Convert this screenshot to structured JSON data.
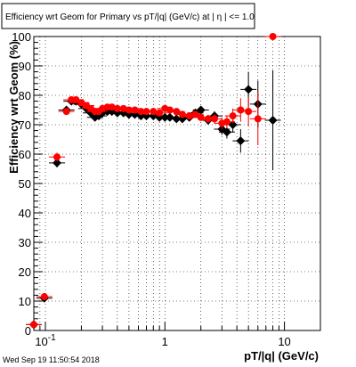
{
  "chart_data": {
    "type": "scatter",
    "title": "Efficiency wrt Geom for Primary vs pT/|q| (GeV/c) at |  η | <= 1.0",
    "xlabel": "pT/|q| (GeV/c)",
    "ylabel": "Efficiency wrt Geom (%)",
    "xscale": "log",
    "xlim": [
      0.08,
      20
    ],
    "ylim": [
      0,
      100
    ],
    "x_tick_labels": [
      {
        "value": 0.1,
        "base": "10",
        "exp": "-1"
      },
      {
        "value": 1,
        "base": "1",
        "exp": ""
      },
      {
        "value": 10,
        "base": "10",
        "exp": ""
      }
    ],
    "y_ticks": [
      0,
      10,
      20,
      30,
      40,
      50,
      60,
      70,
      80,
      90,
      100
    ],
    "grid": true,
    "series": [
      {
        "color": "#000000",
        "marker": "diamond",
        "points": [
          {
            "x": 0.08,
            "y": 2,
            "err": 1
          },
          {
            "x": 0.098,
            "y": 11,
            "err": 1
          },
          {
            "x": 0.125,
            "y": 57,
            "err": 1.5
          },
          {
            "x": 0.15,
            "y": 75,
            "err": 1
          },
          {
            "x": 0.165,
            "y": 78,
            "err": 0.5
          },
          {
            "x": 0.18,
            "y": 78,
            "err": 0.5
          },
          {
            "x": 0.2,
            "y": 77,
            "err": 0.5
          },
          {
            "x": 0.22,
            "y": 75.5,
            "err": 0.5
          },
          {
            "x": 0.24,
            "y": 74,
            "err": 0.5
          },
          {
            "x": 0.26,
            "y": 72.5,
            "err": 0.5
          },
          {
            "x": 0.28,
            "y": 73,
            "err": 0.5
          },
          {
            "x": 0.3,
            "y": 74,
            "err": 0.5
          },
          {
            "x": 0.33,
            "y": 74.5,
            "err": 0.5
          },
          {
            "x": 0.36,
            "y": 74.5,
            "err": 0.5
          },
          {
            "x": 0.4,
            "y": 74,
            "err": 0.5
          },
          {
            "x": 0.45,
            "y": 74,
            "err": 0.5
          },
          {
            "x": 0.5,
            "y": 73.5,
            "err": 0.5
          },
          {
            "x": 0.56,
            "y": 73.5,
            "err": 0.5
          },
          {
            "x": 0.63,
            "y": 73,
            "err": 0.5
          },
          {
            "x": 0.7,
            "y": 73,
            "err": 0.6
          },
          {
            "x": 0.8,
            "y": 73,
            "err": 0.6
          },
          {
            "x": 0.9,
            "y": 72.5,
            "err": 0.6
          },
          {
            "x": 1.0,
            "y": 72.5,
            "err": 0.7
          },
          {
            "x": 1.1,
            "y": 72.5,
            "err": 0.7
          },
          {
            "x": 1.25,
            "y": 72,
            "err": 0.8
          },
          {
            "x": 1.4,
            "y": 72,
            "err": 0.8
          },
          {
            "x": 1.6,
            "y": 72.5,
            "err": 0.9
          },
          {
            "x": 1.8,
            "y": 74,
            "err": 1
          },
          {
            "x": 2.0,
            "y": 75,
            "err": 1.2
          },
          {
            "x": 2.3,
            "y": 71.5,
            "err": 1.4
          },
          {
            "x": 2.6,
            "y": 73,
            "err": 1.6
          },
          {
            "x": 3.0,
            "y": 68.5,
            "err": 2
          },
          {
            "x": 3.3,
            "y": 67.5,
            "err": 2.2
          },
          {
            "x": 3.7,
            "y": 70,
            "err": 2.5
          },
          {
            "x": 4.3,
            "y": 64.5,
            "err": 4
          },
          {
            "x": 5.0,
            "y": 82,
            "err": 6
          },
          {
            "x": 6.0,
            "y": 77,
            "err": 8
          },
          {
            "x": 8.0,
            "y": 71.5,
            "err": 17
          }
        ]
      },
      {
        "color": "#ff0000",
        "marker": "circle",
        "points": [
          {
            "x": 0.08,
            "y": 2,
            "err": 1
          },
          {
            "x": 0.098,
            "y": 11.5,
            "err": 1
          },
          {
            "x": 0.125,
            "y": 59,
            "err": 1.5
          },
          {
            "x": 0.15,
            "y": 74.5,
            "err": 1
          },
          {
            "x": 0.165,
            "y": 78.5,
            "err": 0.5
          },
          {
            "x": 0.18,
            "y": 78.5,
            "err": 0.5
          },
          {
            "x": 0.2,
            "y": 77.5,
            "err": 0.5
          },
          {
            "x": 0.22,
            "y": 76.5,
            "err": 0.5
          },
          {
            "x": 0.24,
            "y": 75.5,
            "err": 0.5
          },
          {
            "x": 0.26,
            "y": 74.5,
            "err": 0.5
          },
          {
            "x": 0.28,
            "y": 74.5,
            "err": 0.5
          },
          {
            "x": 0.3,
            "y": 75.5,
            "err": 0.5
          },
          {
            "x": 0.33,
            "y": 76,
            "err": 0.5
          },
          {
            "x": 0.36,
            "y": 76,
            "err": 0.5
          },
          {
            "x": 0.4,
            "y": 75.5,
            "err": 0.5
          },
          {
            "x": 0.45,
            "y": 75.5,
            "err": 0.5
          },
          {
            "x": 0.5,
            "y": 75,
            "err": 0.5
          },
          {
            "x": 0.56,
            "y": 75,
            "err": 0.5
          },
          {
            "x": 0.63,
            "y": 74.5,
            "err": 0.5
          },
          {
            "x": 0.7,
            "y": 74.5,
            "err": 0.6
          },
          {
            "x": 0.8,
            "y": 74.5,
            "err": 0.6
          },
          {
            "x": 0.9,
            "y": 74,
            "err": 0.6
          },
          {
            "x": 1.0,
            "y": 75.5,
            "err": 0.7
          },
          {
            "x": 1.1,
            "y": 75,
            "err": 0.7
          },
          {
            "x": 1.25,
            "y": 74.5,
            "err": 0.8
          },
          {
            "x": 1.4,
            "y": 73.5,
            "err": 0.8
          },
          {
            "x": 1.6,
            "y": 73,
            "err": 0.9
          },
          {
            "x": 1.8,
            "y": 73.5,
            "err": 1
          },
          {
            "x": 2.0,
            "y": 72.5,
            "err": 1.2
          },
          {
            "x": 2.3,
            "y": 72,
            "err": 1.4
          },
          {
            "x": 2.6,
            "y": 72,
            "err": 1.6
          },
          {
            "x": 3.0,
            "y": 70.5,
            "err": 2
          },
          {
            "x": 3.3,
            "y": 71,
            "err": 2.2
          },
          {
            "x": 3.7,
            "y": 73,
            "err": 2.5
          },
          {
            "x": 4.3,
            "y": 75,
            "err": 4
          },
          {
            "x": 5.0,
            "y": 74.5,
            "err": 5
          },
          {
            "x": 6.0,
            "y": 72,
            "err": 9
          },
          {
            "x": 8.0,
            "y": 100,
            "err": 0
          }
        ]
      }
    ]
  },
  "footer": {
    "timestamp": "Wed Sep 19 11:50:54 2018"
  }
}
